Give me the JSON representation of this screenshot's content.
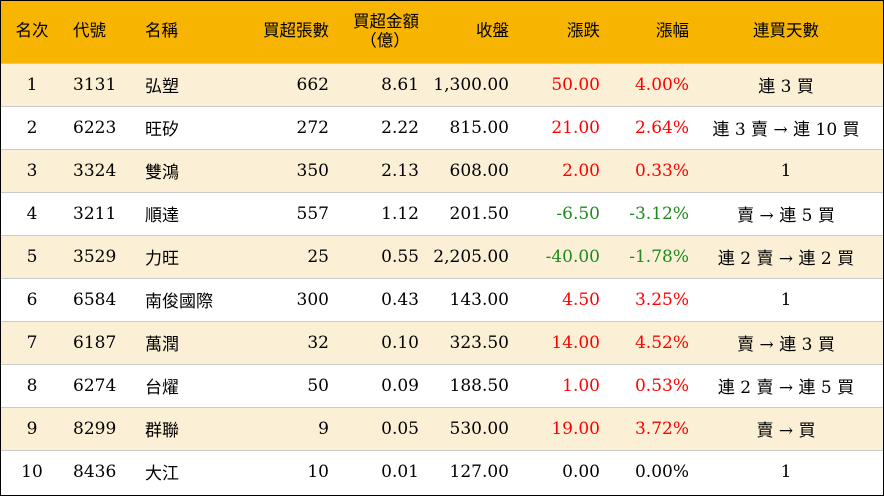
{
  "headers": {
    "rank": "名次",
    "code": "代號",
    "name": "名稱",
    "net_buy_lots": "買超張數",
    "net_buy_amount_line1": "買超金額",
    "net_buy_amount_line2": "（億）",
    "close": "收盤",
    "change": "漲跌",
    "change_pct": "漲幅",
    "consecutive_days": "連買天數"
  },
  "colors": {
    "header_bg": "#f7b400",
    "odd_row_bg": "#fbf0d6",
    "even_row_bg": "#ffffff",
    "up": "#ff0000",
    "down": "#1e8a1e",
    "flat": "#000000"
  },
  "rows": [
    {
      "rank": "1",
      "code": "3131",
      "name": "弘塑",
      "net_buy_lots": "662",
      "net_buy_amount": "8.61",
      "close": "1,300.00",
      "change": "50.00",
      "change_pct": "4.00%",
      "trend": "up",
      "consecutive_days": "連 3 買"
    },
    {
      "rank": "2",
      "code": "6223",
      "name": "旺矽",
      "net_buy_lots": "272",
      "net_buy_amount": "2.22",
      "close": "815.00",
      "change": "21.00",
      "change_pct": "2.64%",
      "trend": "up",
      "consecutive_days": "連 3 賣 → 連 10 買"
    },
    {
      "rank": "3",
      "code": "3324",
      "name": "雙鴻",
      "net_buy_lots": "350",
      "net_buy_amount": "2.13",
      "close": "608.00",
      "change": "2.00",
      "change_pct": "0.33%",
      "trend": "up",
      "consecutive_days": "1"
    },
    {
      "rank": "4",
      "code": "3211",
      "name": "順達",
      "net_buy_lots": "557",
      "net_buy_amount": "1.12",
      "close": "201.50",
      "change": "-6.50",
      "change_pct": "-3.12%",
      "trend": "down",
      "consecutive_days": "賣 → 連 5 買"
    },
    {
      "rank": "5",
      "code": "3529",
      "name": "力旺",
      "net_buy_lots": "25",
      "net_buy_amount": "0.55",
      "close": "2,205.00",
      "change": "-40.00",
      "change_pct": "-1.78%",
      "trend": "down",
      "consecutive_days": "連 2 賣 → 連 2 買"
    },
    {
      "rank": "6",
      "code": "6584",
      "name": "南俊國際",
      "net_buy_lots": "300",
      "net_buy_amount": "0.43",
      "close": "143.00",
      "change": "4.50",
      "change_pct": "3.25%",
      "trend": "up",
      "consecutive_days": "1"
    },
    {
      "rank": "7",
      "code": "6187",
      "name": "萬潤",
      "net_buy_lots": "32",
      "net_buy_amount": "0.10",
      "close": "323.50",
      "change": "14.00",
      "change_pct": "4.52%",
      "trend": "up",
      "consecutive_days": "賣 → 連 3 買"
    },
    {
      "rank": "8",
      "code": "6274",
      "name": "台燿",
      "net_buy_lots": "50",
      "net_buy_amount": "0.09",
      "close": "188.50",
      "change": "1.00",
      "change_pct": "0.53%",
      "trend": "up",
      "consecutive_days": "連 2 賣 → 連 5 買"
    },
    {
      "rank": "9",
      "code": "8299",
      "name": "群聯",
      "net_buy_lots": "9",
      "net_buy_amount": "0.05",
      "close": "530.00",
      "change": "19.00",
      "change_pct": "3.72%",
      "trend": "up",
      "consecutive_days": "賣 → 買"
    },
    {
      "rank": "10",
      "code": "8436",
      "name": "大江",
      "net_buy_lots": "10",
      "net_buy_amount": "0.01",
      "close": "127.00",
      "change": "0.00",
      "change_pct": "0.00%",
      "trend": "flat",
      "consecutive_days": "1"
    }
  ]
}
